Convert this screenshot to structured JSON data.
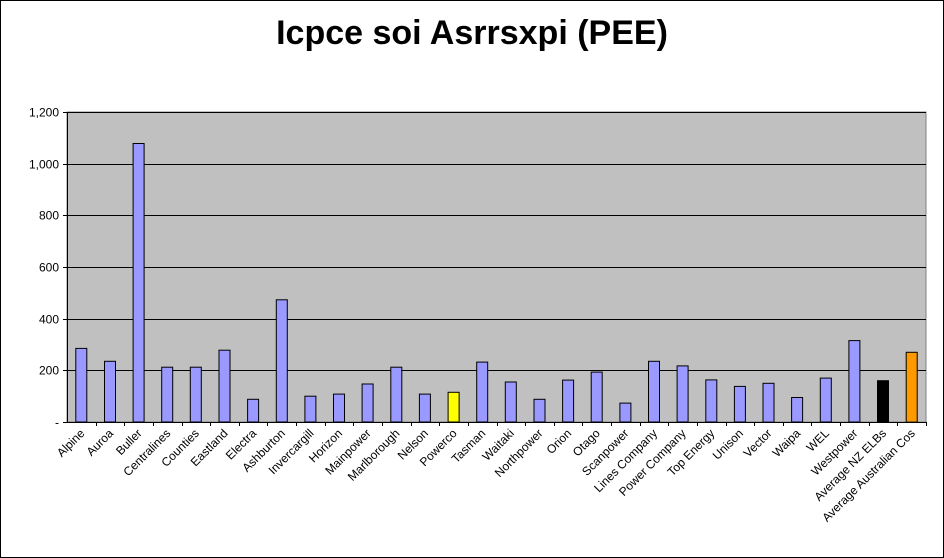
{
  "chart_data": {
    "type": "bar",
    "title": "Icpce soi Asrrsxpi (PEE)",
    "xlabel": "",
    "ylabel": "",
    "ylim": [
      0,
      1200
    ],
    "yticks": [
      0,
      200,
      400,
      600,
      800,
      1000,
      1200
    ],
    "ytick_labels": [
      "-",
      "200",
      "400",
      "600",
      "800",
      "1,000",
      "1,200"
    ],
    "grid": true,
    "plot_background": "#C0C0C0",
    "default_bar_color": "#9999FF",
    "categories": [
      "Alpine",
      "Auroa",
      "Buller",
      "Centralines",
      "Counties",
      "Eastland",
      "Electra",
      "Ashburton",
      "Invercargill",
      "Horizon",
      "Mainpower",
      "Marlborough",
      "Nelson",
      "Powerco",
      "Tasman",
      "Waitaki",
      "Northpower",
      "Orion",
      "Otago",
      "Scanpower",
      "Lines Company",
      "Power Company",
      "Top Energy",
      "Unison",
      "Vector",
      "Waipa",
      "WEL",
      "Westpower",
      "Average NZ ELBs",
      "Average Australian Cos"
    ],
    "values": [
      285,
      235,
      1078,
      212,
      212,
      278,
      88,
      473,
      100,
      108,
      147,
      212,
      108,
      115,
      232,
      155,
      88,
      162,
      193,
      73,
      235,
      217,
      163,
      138,
      150,
      95,
      170,
      315,
      160,
      270
    ],
    "highlight_colors": {
      "Powerco": "#FFFF00",
      "Average NZ ELBs": "#000000",
      "Average Australian Cos": "#FF9900"
    }
  }
}
